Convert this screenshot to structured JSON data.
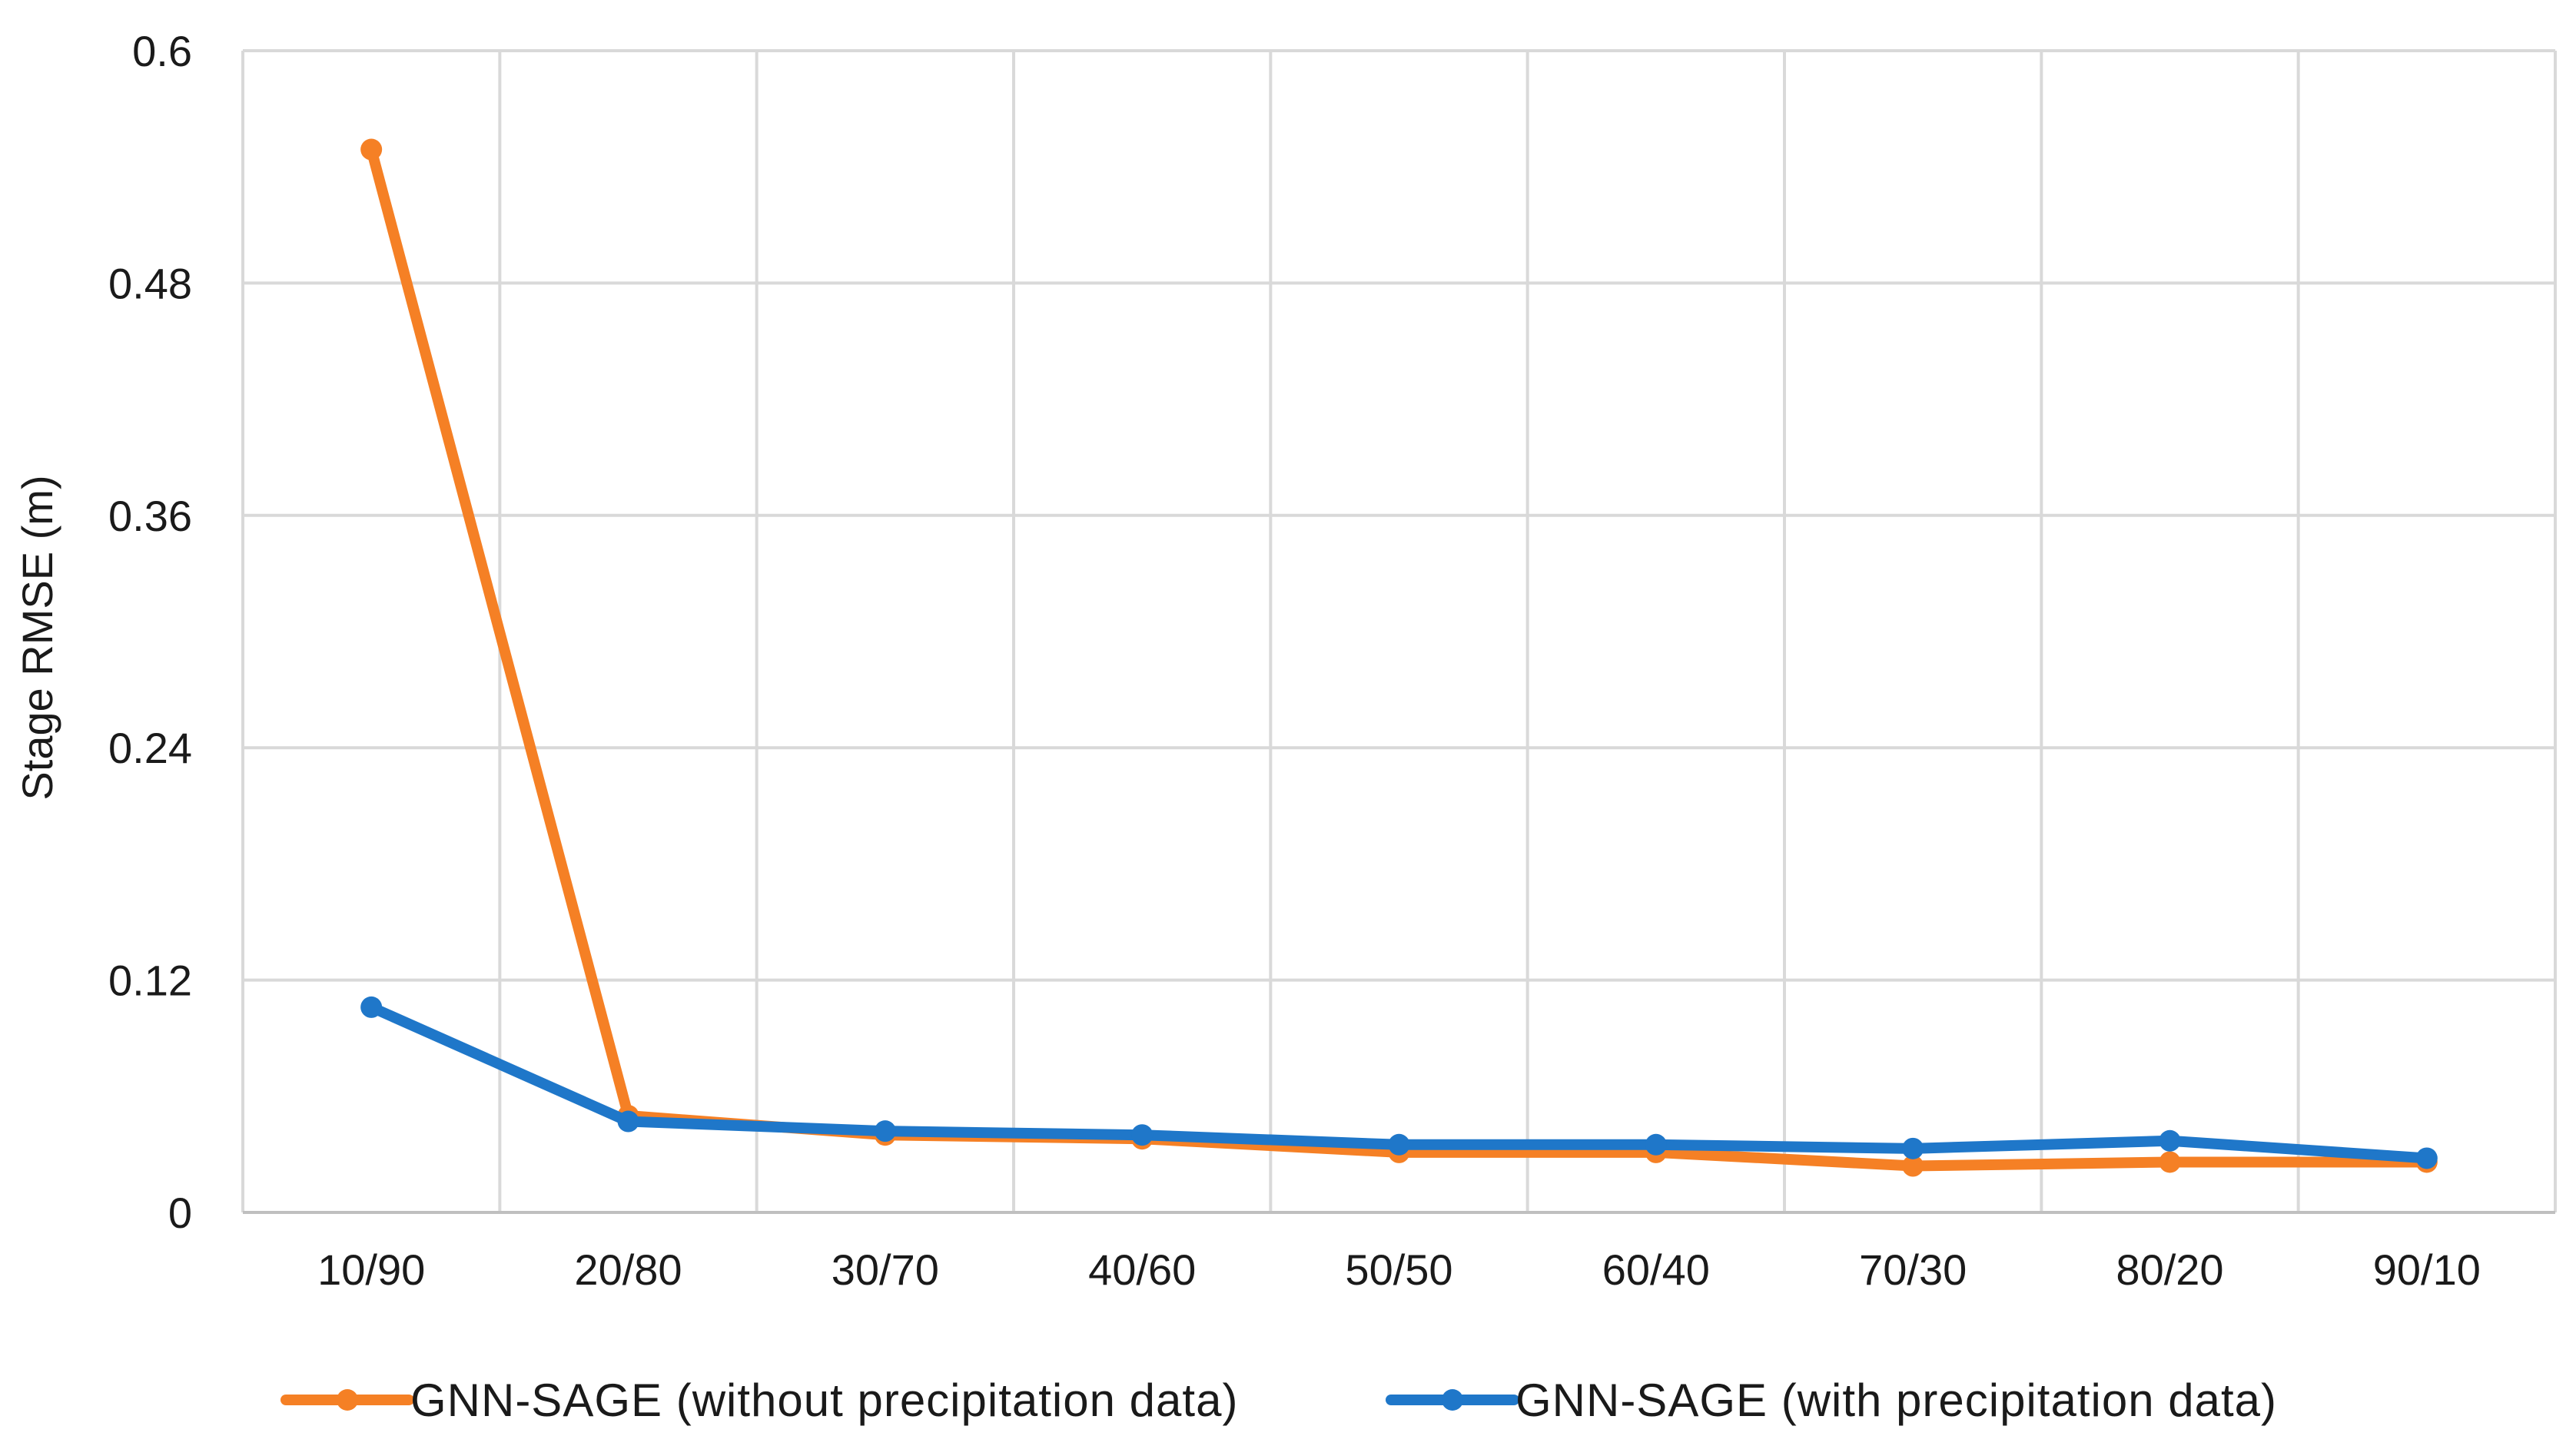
{
  "chart_data": {
    "type": "line",
    "title": "",
    "xlabel": "",
    "ylabel": "Stage RMSE (m)",
    "categories": [
      "10/90",
      "20/80",
      "30/70",
      "40/60",
      "50/50",
      "60/40",
      "70/30",
      "80/20",
      "90/10"
    ],
    "y_ticks": [
      "0",
      "0.12",
      "0.24",
      "0.36",
      "0.48",
      "0.6"
    ],
    "ylim": [
      0,
      0.6
    ],
    "grid": true,
    "legend_position": "bottom",
    "series": [
      {
        "name": "GNN-SAGE (without precipitation data)",
        "color": "#f58025",
        "values": [
          0.549,
          0.05,
          0.04,
          0.038,
          0.031,
          0.031,
          0.024,
          0.026,
          0.026
        ]
      },
      {
        "name": "GNN-SAGE (with precipitation data)",
        "color": "#1f77c9",
        "values": [
          0.106,
          0.047,
          0.042,
          0.04,
          0.035,
          0.035,
          0.033,
          0.037,
          0.028
        ]
      }
    ]
  }
}
